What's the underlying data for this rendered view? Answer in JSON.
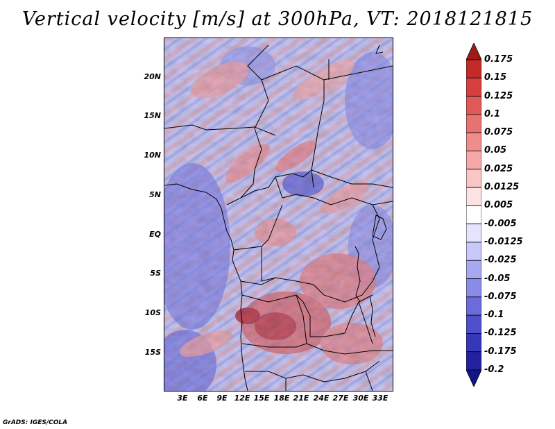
{
  "title": "Vertical velocity [m/s] at 300hPa, VT: 2018121815",
  "footer": "GrADS: IGES/COLA",
  "y_axis_labels": [
    "20N",
    "15N",
    "10N",
    "5N",
    "EQ",
    "5S",
    "10S",
    "15S"
  ],
  "x_axis_labels": [
    "3E",
    "6E",
    "9E",
    "12E",
    "15E",
    "18E",
    "21E",
    "24E",
    "27E",
    "30E",
    "33E"
  ],
  "colorbar": {
    "labels": [
      "0.175",
      "0.15",
      "0.125",
      "0.1",
      "0.075",
      "0.05",
      "0.025",
      "0.0125",
      "0.005",
      "-0.005",
      "-0.0125",
      "-0.025",
      "-0.05",
      "-0.075",
      "-0.1",
      "-0.125",
      "-0.175",
      "-0.2"
    ],
    "colors": [
      "#a01a1a",
      "#c42a2a",
      "#d63f3f",
      "#e05858",
      "#e87272",
      "#ef8c8c",
      "#f5a8a8",
      "#f9c6c6",
      "#fde2e2",
      "#ffffff",
      "#e4e4ff",
      "#c8c8fa",
      "#a8a8f2",
      "#8a8ae8",
      "#6b6bdc",
      "#4f4fcc",
      "#3636b8",
      "#2222a0",
      "#14148a"
    ]
  }
}
